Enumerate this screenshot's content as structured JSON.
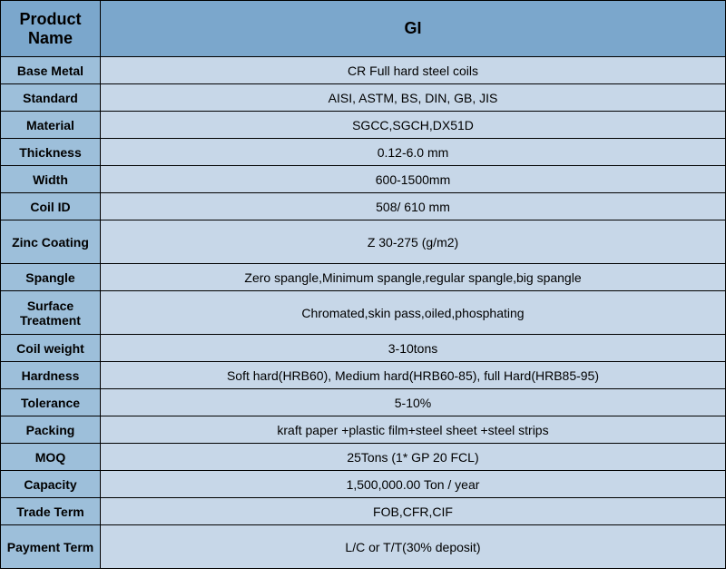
{
  "table": {
    "type": "table",
    "header_bg_color": "#7ba7cc",
    "label_bg_color": "#9dbfda",
    "value_bg_color": "#c7d7e8",
    "border_color": "#000000",
    "header_fontsize": 18,
    "body_fontsize": 14,
    "label_width": 110,
    "header": {
      "label": "Product Name",
      "value": "GI"
    },
    "rows": [
      {
        "label": "Base Metal",
        "value": "CR Full hard steel coils",
        "height": "single"
      },
      {
        "label": "Standard",
        "value": "AISI, ASTM, BS, DIN, GB, JIS",
        "height": "single"
      },
      {
        "label": "Material",
        "value": "SGCC,SGCH,DX51D",
        "height": "single"
      },
      {
        "label": "Thickness",
        "value": "0.12-6.0 mm",
        "height": "single"
      },
      {
        "label": "Width",
        "value": "600-1500mm",
        "height": "single"
      },
      {
        "label": "Coil ID",
        "value": "508/ 610 mm",
        "height": "single"
      },
      {
        "label": "Zinc Coating",
        "value": "Z 30-275 (g/m2)",
        "height": "double"
      },
      {
        "label": "Spangle",
        "value": "Zero spangle,Minimum spangle,regular spangle,big spangle",
        "height": "single"
      },
      {
        "label": "Surface Treatment",
        "value": "Chromated,skin pass,oiled,phosphating",
        "height": "double"
      },
      {
        "label": "Coil weight",
        "value": "3-10tons",
        "height": "single"
      },
      {
        "label": "Hardness",
        "value": "Soft hard(HRB60), Medium hard(HRB60-85), full Hard(HRB85-95)",
        "height": "single"
      },
      {
        "label": "Tolerance",
        "value": "5-10%",
        "height": "single"
      },
      {
        "label": "Packing",
        "value": "kraft paper +plastic film+steel sheet +steel strips",
        "height": "single"
      },
      {
        "label": "MOQ",
        "value": "25Tons (1* GP 20 FCL)",
        "height": "single"
      },
      {
        "label": "Capacity",
        "value": "1,500,000.00 Ton / year",
        "height": "single"
      },
      {
        "label": "Trade Term",
        "value": "FOB,CFR,CIF",
        "height": "single"
      },
      {
        "label": "Payment Term",
        "value": "L/C or T/T(30% deposit)",
        "height": "double"
      }
    ]
  }
}
